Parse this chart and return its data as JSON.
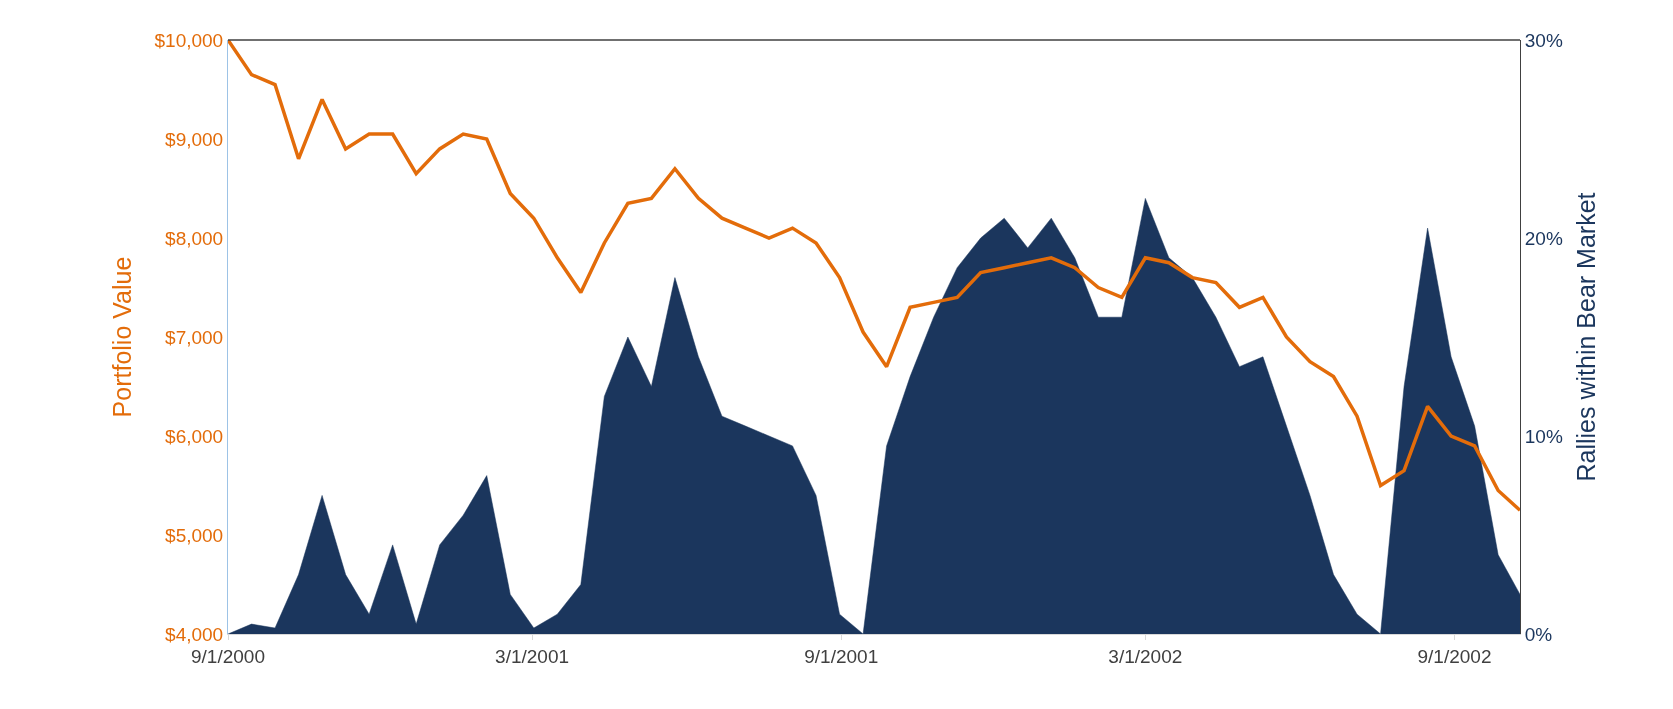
{
  "chart_data": {
    "type": "line",
    "ylabel": "Portfolio Value",
    "y2label": "Rallies within Bear Market",
    "xlim": [
      "2000-09-01",
      "2002-10-10"
    ],
    "xticks": [
      {
        "value": "2000-09-01",
        "label": "9/1/2000"
      },
      {
        "value": "2001-03-01",
        "label": "3/1/2001"
      },
      {
        "value": "2001-09-01",
        "label": "9/1/2001"
      },
      {
        "value": "2002-03-01",
        "label": "3/1/2002"
      },
      {
        "value": "2002-09-01",
        "label": "9/1/2002"
      }
    ],
    "ylim": [
      4000,
      10000
    ],
    "yticks": [
      {
        "value": 4000,
        "label": "$4,000"
      },
      {
        "value": 5000,
        "label": "$5,000"
      },
      {
        "value": 6000,
        "label": "$6,000"
      },
      {
        "value": 7000,
        "label": "$7,000"
      },
      {
        "value": 8000,
        "label": "$8,000"
      },
      {
        "value": 9000,
        "label": "$9,000"
      },
      {
        "value": 10000,
        "label": "$10,000"
      }
    ],
    "y2lim": [
      0,
      30
    ],
    "y2ticks": [
      {
        "value": 0,
        "label": "0%"
      },
      {
        "value": 10,
        "label": "10%"
      },
      {
        "value": 20,
        "label": "20%"
      },
      {
        "value": 30,
        "label": "30%"
      }
    ],
    "x": [
      "2000-09-01",
      "2000-09-15",
      "2000-09-29",
      "2000-10-13",
      "2000-10-27",
      "2000-11-10",
      "2000-11-24",
      "2000-12-08",
      "2000-12-22",
      "2001-01-05",
      "2001-01-19",
      "2001-02-02",
      "2001-02-16",
      "2001-03-02",
      "2001-03-16",
      "2001-03-30",
      "2001-04-13",
      "2001-04-27",
      "2001-05-11",
      "2001-05-25",
      "2001-06-08",
      "2001-06-22",
      "2001-07-06",
      "2001-07-20",
      "2001-08-03",
      "2001-08-17",
      "2001-08-31",
      "2001-09-14",
      "2001-09-28",
      "2001-10-12",
      "2001-10-26",
      "2001-11-09",
      "2001-11-23",
      "2001-12-07",
      "2001-12-21",
      "2002-01-04",
      "2002-01-18",
      "2002-02-01",
      "2002-02-15",
      "2002-03-01",
      "2002-03-15",
      "2002-03-29",
      "2002-04-12",
      "2002-04-26",
      "2002-05-10",
      "2002-05-24",
      "2002-06-07",
      "2002-06-21",
      "2002-07-05",
      "2002-07-19",
      "2002-08-02",
      "2002-08-16",
      "2002-08-30",
      "2002-09-13",
      "2002-09-27",
      "2002-10-10"
    ],
    "series": [
      {
        "type": "area",
        "axis": "y2",
        "color": "#1b365d",
        "values": [
          0,
          0.5,
          0.3,
          3,
          7,
          3,
          1,
          4.5,
          0.5,
          4.5,
          6,
          8,
          2,
          0.3,
          1,
          2.5,
          12,
          15,
          12.5,
          18,
          14,
          11,
          10.5,
          10,
          9.5,
          7,
          1,
          0,
          9.5,
          13,
          16,
          18.5,
          20,
          21,
          19.5,
          21,
          19,
          16,
          16,
          22,
          19,
          18,
          16,
          13.5,
          14,
          10.5,
          7,
          3,
          1,
          0,
          12.5,
          20.5,
          14,
          10.5,
          4,
          2
        ]
      },
      {
        "color": "#e36c0a",
        "values": [
          10000,
          9650,
          9550,
          8800,
          9400,
          8900,
          9050,
          9050,
          8650,
          8900,
          9050,
          9000,
          8450,
          8200,
          7800,
          7450,
          7950,
          8350,
          8400,
          8700,
          8400,
          8200,
          8100,
          8000,
          8100,
          7950,
          7600,
          7050,
          6700,
          7300,
          7350,
          7400,
          7650,
          7700,
          7750,
          7800,
          7700,
          7500,
          7400,
          7800,
          7750,
          7600,
          7550,
          7300,
          7400,
          7000,
          6750,
          6600,
          6200,
          5500,
          5650,
          6300,
          6000,
          5900,
          5450,
          5250
        ]
      }
    ]
  }
}
